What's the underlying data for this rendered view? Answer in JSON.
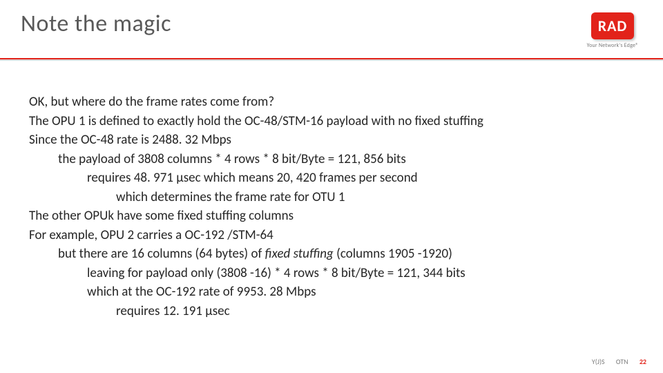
{
  "colors": {
    "accent": "#e2231a",
    "title": "#595959",
    "body": "#262626",
    "muted": "#7a7a7a",
    "background": "#ffffff",
    "rule_shadow": "#d9d9d9"
  },
  "typography": {
    "title_fontsize": 34,
    "body_fontsize": 19,
    "footer_fontsize": 10,
    "logo_fontsize": 22,
    "tagline_fontsize": 8,
    "font_family": "Calibri"
  },
  "header": {
    "title": "Note the magic"
  },
  "logo": {
    "text": "RAD",
    "tagline": "Your Network's Edge®"
  },
  "body": {
    "lines": [
      {
        "indent": 0,
        "text": "OK, but where do the frame rates come from?"
      },
      {
        "indent": 0,
        "text": "The OPU 1 is defined to exactly hold the OC-48/STM-16 payload with no fixed stuffing"
      },
      {
        "indent": 0,
        "text": "Since the OC-48 rate is  2488. 32 Mbps"
      },
      {
        "indent": 1,
        "text": "the payload of 3808 columns * 4 rows * 8 bit/Byte = 121, 856 bits"
      },
      {
        "indent": 2,
        "text": "requires 48. 971 μsec which means 20, 420 frames per second"
      },
      {
        "indent": 3,
        "text": "which determines the frame rate for OTU 1"
      },
      {
        "indent": 0,
        "text": "The other OPUk have some fixed stuffing columns"
      },
      {
        "indent": 0,
        "text": "For example, OPU 2 carries a OC-192 /STM-64"
      },
      {
        "indent": 1,
        "html": "but there are 16 columns (64 bytes) of <em>fixed stuffing</em> (columns 1905 -1920)"
      },
      {
        "indent": 2,
        "text": "leaving for payload only (3808 -16) * 4 rows * 8 bit/Byte = 121, 344 bits"
      },
      {
        "indent": 2,
        "text": "which at the OC-192 rate of 9953. 28 Mbps"
      },
      {
        "indent": 3,
        "text": "requires 12. 191 μsec"
      }
    ]
  },
  "footer": {
    "author": "Y(J)S",
    "topic": "OTN",
    "page": "22"
  }
}
